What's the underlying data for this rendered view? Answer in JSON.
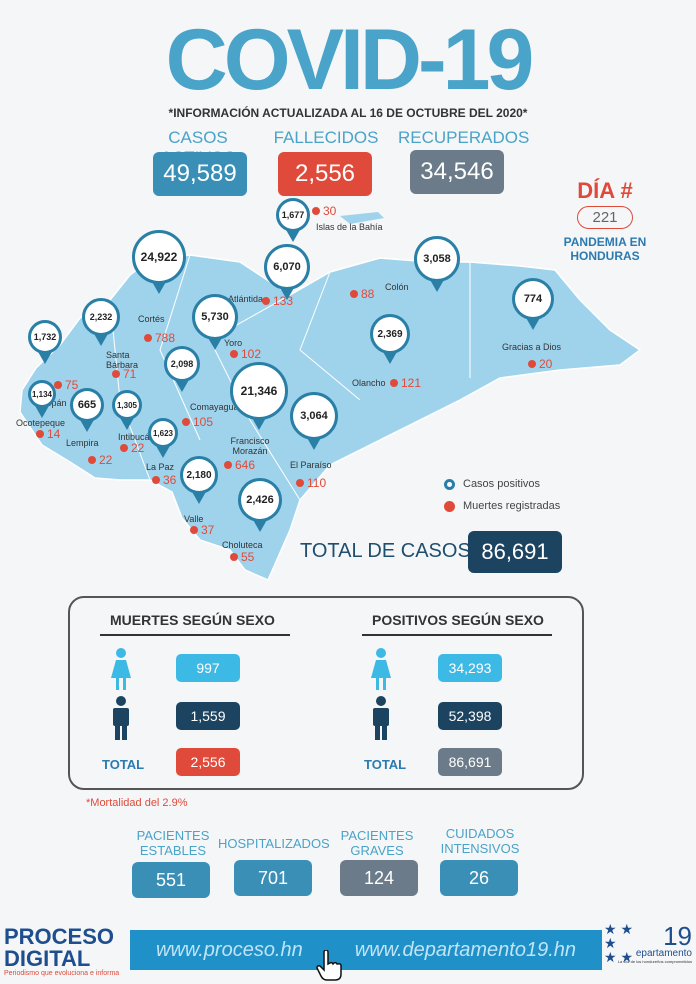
{
  "title": "COVID-19",
  "subtitle": "*INFORMACIÓN ACTUALIZADA AL 16  DE OCTUBRE DEL 2020*",
  "stats": {
    "activos": {
      "label": "CASOS ACTIVOS",
      "value": "49,589",
      "color": "#3a8fb7"
    },
    "fallecidos": {
      "label": "FALLECIDOS",
      "value": "2,556",
      "color": "#e04a3a"
    },
    "recuperados": {
      "label": "RECUPERADOS",
      "value": "34,546",
      "color": "#6b7b8a"
    }
  },
  "dia": {
    "label": "DÍA #",
    "number": "221",
    "sub": "PANDEMIA EN HONDURAS"
  },
  "map": {
    "departments": [
      {
        "name": "Islas de la Bahía",
        "cases": "1,677",
        "deaths": "30"
      },
      {
        "name": "Atlántida",
        "cases": "6,070",
        "deaths": "133"
      },
      {
        "name": "Colón",
        "cases": "3,058",
        "deaths": "88"
      },
      {
        "name": "Gracias a Dios",
        "cases": "774",
        "deaths": "20"
      },
      {
        "name": "Cortés",
        "cases": "24,922",
        "deaths": "788"
      },
      {
        "name": "Yoro",
        "cases": "5,730",
        "deaths": "102"
      },
      {
        "name": "Santa Bárbara",
        "cases": "2,232",
        "deaths": "71"
      },
      {
        "name": "Copán",
        "cases": "1,732",
        "deaths": "75"
      },
      {
        "name": "Ocotepeque",
        "cases": "1,134",
        "deaths": "14"
      },
      {
        "name": "Lempira",
        "cases": "665",
        "deaths": "22"
      },
      {
        "name": "Intibucá",
        "cases": "1,305",
        "deaths": "22"
      },
      {
        "name": "Comayagua",
        "cases": "2,098",
        "deaths": "105"
      },
      {
        "name": "Olancho",
        "cases": "2,369",
        "deaths": "121"
      },
      {
        "name": "Francisco Morazán",
        "cases": "21,346",
        "deaths": "646"
      },
      {
        "name": "La Paz",
        "cases": "1,623",
        "deaths": "36"
      },
      {
        "name": "El Paraíso",
        "cases": "3,064",
        "deaths": "110"
      },
      {
        "name": "Valle",
        "cases": "2,180",
        "deaths": "37"
      },
      {
        "name": "Choluteca",
        "cases": "2,426",
        "deaths": "55"
      }
    ]
  },
  "legend": {
    "positivos": "Casos positivos",
    "muertes": "Muertes registradas"
  },
  "total_casos": {
    "label": "TOTAL DE CASOS",
    "value": "86,691"
  },
  "sexo": {
    "muertes_title": "MUERTES SEGÚN SEXO",
    "positivos_title": "POSITIVOS SEGÚN SEXO",
    "muertes": {
      "mujeres": "997",
      "hombres": "1,559",
      "total": "2,556"
    },
    "positivos": {
      "mujeres": "34,293",
      "hombres": "52,398",
      "total": "86,691"
    },
    "total_label": "TOTAL",
    "colors": {
      "light": "#3db9e6",
      "dark": "#1c4460",
      "red": "#e04a3a",
      "gray": "#6b7b8a"
    }
  },
  "mortalidad": "*Mortalidad del 2.9%",
  "bottom": {
    "estables": {
      "label1": "PACIENTES",
      "label2": "ESTABLES",
      "value": "551"
    },
    "hospitalizados": {
      "label1": "HOSPITALIZADOS",
      "label2": "",
      "value": "701"
    },
    "graves": {
      "label1": "PACIENTES",
      "label2": "GRAVES",
      "value": "124"
    },
    "intensivos": {
      "label1": "CUIDADOS",
      "label2": "INTENSIVOS",
      "value": "26"
    }
  },
  "footer": {
    "logo_line1": "PROCESO",
    "logo_line2": "DIGITAL",
    "logo_tagline": "Periodismo que evoluciona e informa",
    "url1": "www.proceso.hn",
    "url2": "www.departamento19.hn",
    "dept_logo": "epartamento",
    "dept_num": "19",
    "dept_tagline": "La voz de los hondureños comprometidos"
  }
}
